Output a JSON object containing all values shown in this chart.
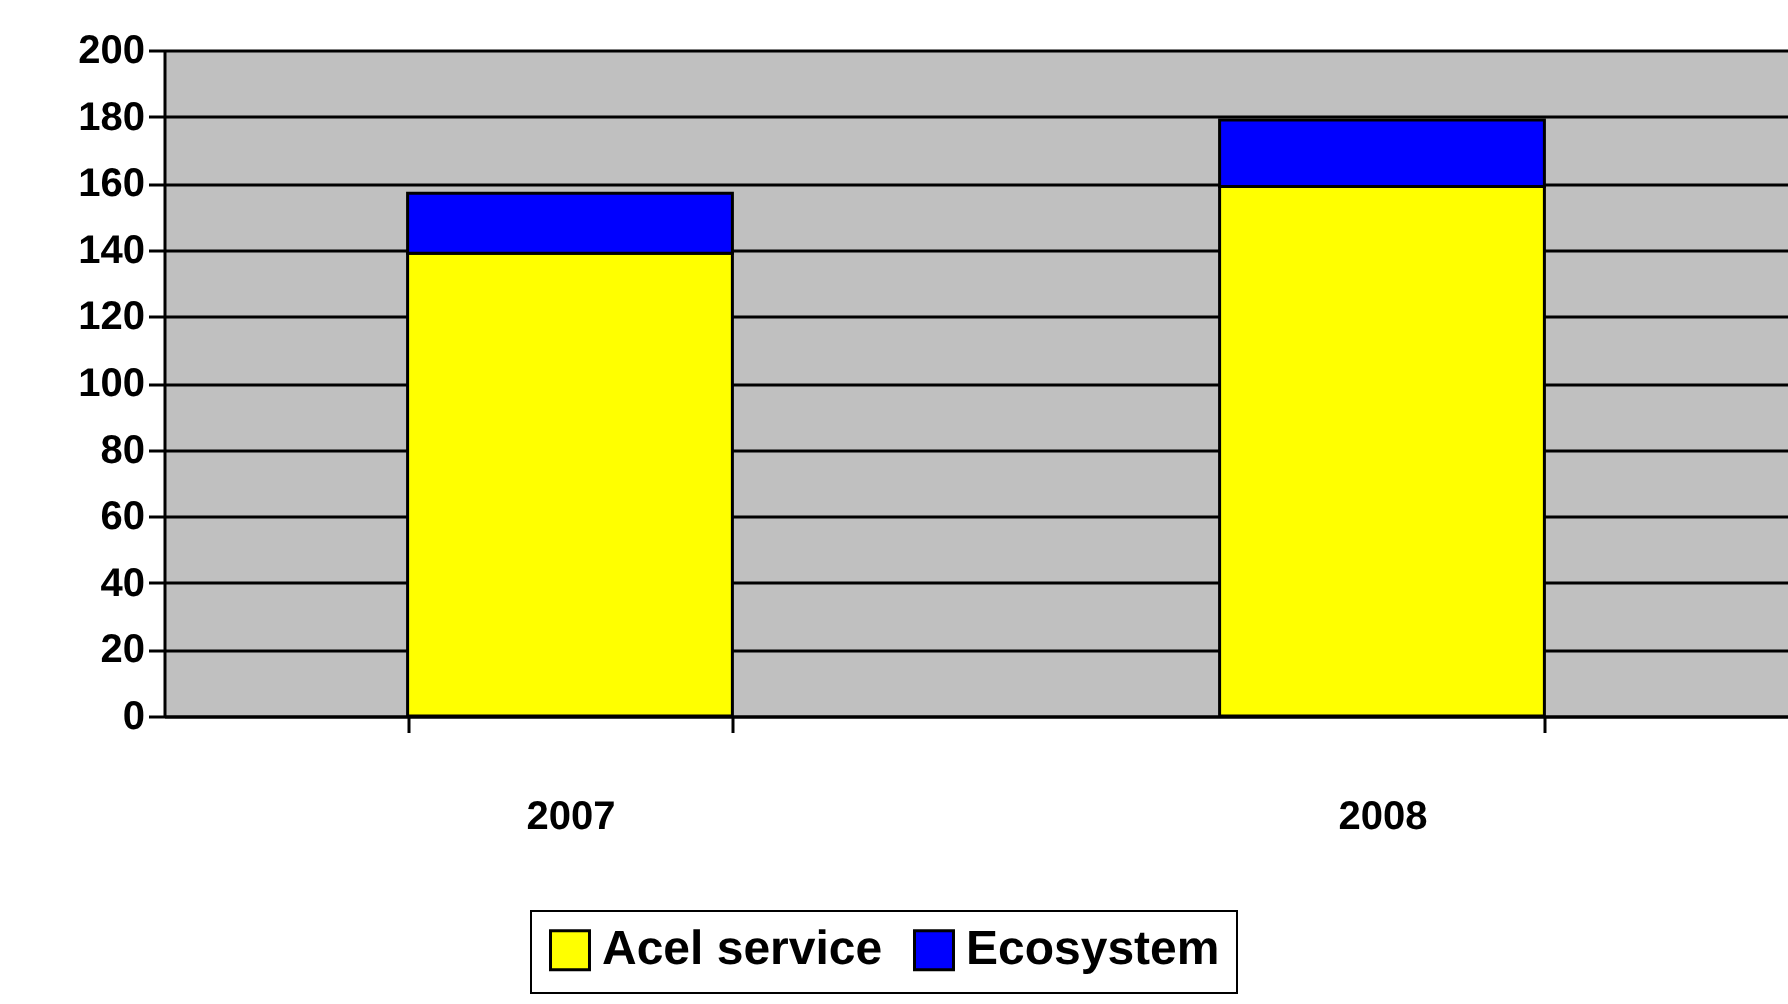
{
  "chart_data": {
    "type": "bar",
    "stacked": true,
    "categories": [
      "2007",
      "2008"
    ],
    "series": [
      {
        "name": "Acel service",
        "color": "#ffff00",
        "values": [
          139,
          159
        ]
      },
      {
        "name": "Ecosystem",
        "color": "#0000ff",
        "values": [
          18,
          20
        ]
      }
    ],
    "ylim": [
      0,
      200
    ],
    "yticks": [
      0,
      20,
      40,
      60,
      80,
      100,
      120,
      140,
      160,
      180,
      200
    ],
    "grid": "y",
    "legend": "bottom"
  }
}
